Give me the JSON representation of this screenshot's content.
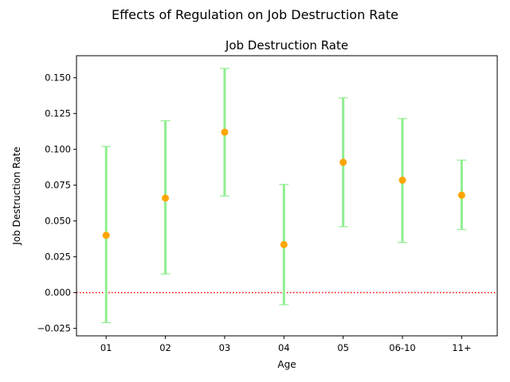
{
  "chart_data": {
    "type": "errorbar",
    "suptitle": "Effects of Regulation on Job Destruction Rate",
    "title": "Job Destruction Rate",
    "xlabel": "Age",
    "ylabel": "Job Destruction Rate",
    "categories": [
      "01",
      "02",
      "03",
      "04",
      "05",
      "06-10",
      "11+"
    ],
    "series": [
      {
        "values": [
          0.04,
          0.066,
          0.112,
          0.0335,
          0.091,
          0.0785,
          0.068
        ],
        "lower": [
          -0.021,
          0.013,
          0.0675,
          -0.0085,
          0.046,
          0.035,
          0.044
        ],
        "upper": [
          0.102,
          0.12,
          0.1565,
          0.0755,
          0.136,
          0.1215,
          0.0925
        ],
        "marker_color": "#ffa500",
        "errorbar_color": "#90ee90"
      }
    ],
    "yticks": [
      "−0.025",
      "0.000",
      "0.025",
      "0.050",
      "0.075",
      "0.100",
      "0.125",
      "0.150"
    ],
    "ytick_values": [
      -0.025,
      0.0,
      0.025,
      0.05,
      0.075,
      0.1,
      0.125,
      0.15
    ],
    "ylim": [
      -0.0302,
      0.1654
    ],
    "reference_line": {
      "y": 0.0,
      "style": "dotted",
      "color": "#ff0000"
    },
    "grid": false,
    "legend": "none"
  }
}
